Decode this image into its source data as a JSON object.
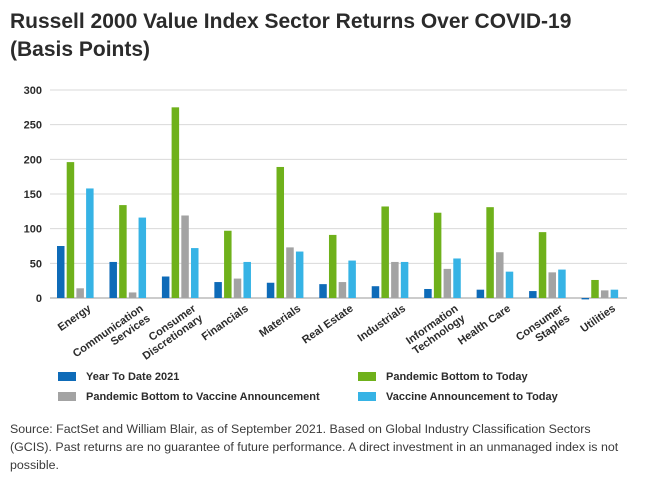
{
  "title": "Russell 2000 Value Index Sector Returns Over COVID-19 (Basis Points)",
  "source": "Source: FactSet and William Blair, as of September 2021. Based on Global Industry Classification Sectors (GCIS). Past returns are no guarantee of future performance. A direct investment in an unmanaged index is not possible.",
  "chart_data": {
    "type": "bar",
    "title": "Russell 2000 Value Index Sector Returns Over COVID-19 (Basis Points)",
    "xlabel": "",
    "ylabel": "",
    "ylim": [
      0,
      300
    ],
    "yticks": [
      0,
      50,
      100,
      150,
      200,
      250,
      300
    ],
    "grid": true,
    "legend": "bottom",
    "categories": [
      [
        "Energy"
      ],
      [
        "Communication",
        "Services"
      ],
      [
        "Consumer",
        "Discretionary"
      ],
      [
        "Financials"
      ],
      [
        "Materials"
      ],
      [
        "Real Estate"
      ],
      [
        "Industrials"
      ],
      [
        "Information",
        "Technology"
      ],
      [
        "Health Care"
      ],
      [
        "Consumer",
        "Staples"
      ],
      [
        "Utilities"
      ]
    ],
    "series": [
      {
        "name": "Year To Date 2021",
        "color": "#0e6bb8",
        "values": [
          75,
          52,
          31,
          23,
          22,
          20,
          17,
          13,
          12,
          10,
          -2
        ]
      },
      {
        "name": "Pandemic Bottom to Today",
        "color": "#6fb11b",
        "values": [
          196,
          134,
          275,
          97,
          189,
          91,
          132,
          123,
          131,
          95,
          26
        ]
      },
      {
        "name": "Pandemic Bottom to Vaccine Announcement",
        "color": "#a3a3a3",
        "values": [
          14,
          8,
          119,
          28,
          73,
          23,
          52,
          42,
          66,
          37,
          11
        ]
      },
      {
        "name": "Vaccine Announcement to Today",
        "color": "#36b3e5",
        "values": [
          158,
          116,
          72,
          52,
          67,
          54,
          52,
          57,
          38,
          41,
          12
        ]
      }
    ]
  }
}
